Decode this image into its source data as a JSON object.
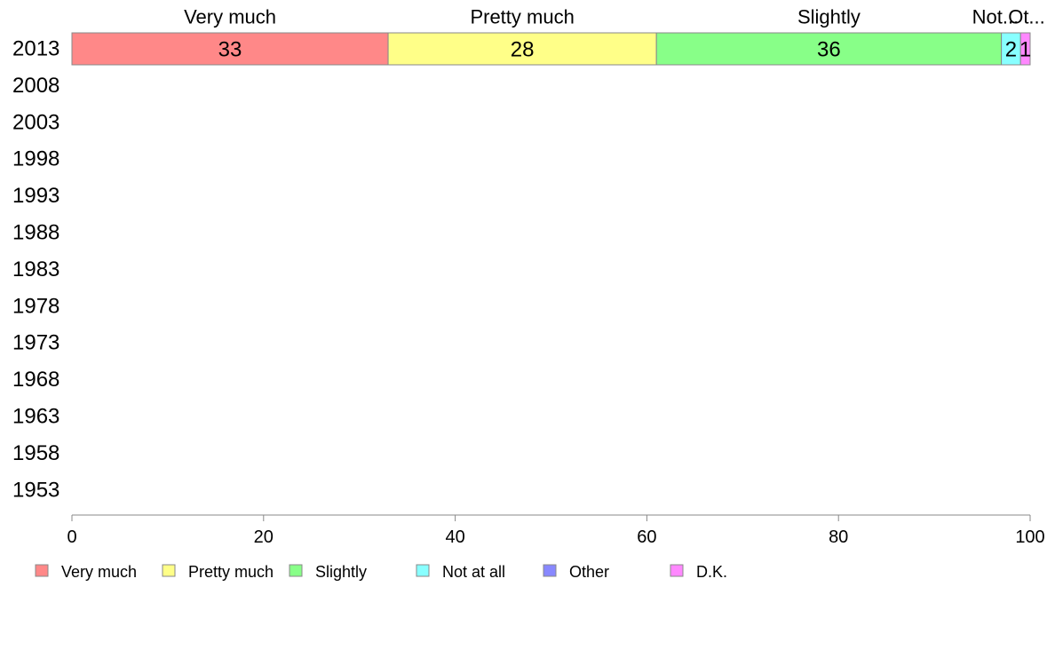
{
  "chart_data": {
    "type": "bar",
    "orientation": "horizontal",
    "stacked": true,
    "categories": [
      "2013",
      "2008",
      "2003",
      "1998",
      "1993",
      "1988",
      "1983",
      "1978",
      "1973",
      "1968",
      "1963",
      "1958",
      "1953"
    ],
    "series": [
      {
        "name": "Very much",
        "color": "#ff8888",
        "values": [
          33,
          null,
          null,
          null,
          null,
          null,
          null,
          null,
          null,
          null,
          null,
          null,
          null
        ]
      },
      {
        "name": "Pretty much",
        "color": "#ffff88",
        "values": [
          28,
          null,
          null,
          null,
          null,
          null,
          null,
          null,
          null,
          null,
          null,
          null,
          null
        ]
      },
      {
        "name": "Slightly",
        "color": "#88ff88",
        "values": [
          36,
          null,
          null,
          null,
          null,
          null,
          null,
          null,
          null,
          null,
          null,
          null,
          null
        ]
      },
      {
        "name": "Not at all",
        "color": "#88ffff",
        "values": [
          2,
          null,
          null,
          null,
          null,
          null,
          null,
          null,
          null,
          null,
          null,
          null,
          null
        ]
      },
      {
        "name": "Other",
        "color": "#8888ff",
        "values": [
          0,
          null,
          null,
          null,
          null,
          null,
          null,
          null,
          null,
          null,
          null,
          null,
          null
        ]
      },
      {
        "name": "D.K.",
        "color": "#ff88ff",
        "values": [
          1,
          null,
          null,
          null,
          null,
          null,
          null,
          null,
          null,
          null,
          null,
          null,
          null
        ]
      }
    ],
    "top_labels": [
      "Very much",
      "Pretty much",
      "Slightly",
      "Not...",
      "Ot..."
    ],
    "xlim": [
      0,
      100
    ],
    "xticks": [
      0,
      20,
      40,
      60,
      80,
      100
    ],
    "xlabel": "",
    "ylabel": "",
    "title": "",
    "grid": false,
    "legend_position": "bottom"
  }
}
